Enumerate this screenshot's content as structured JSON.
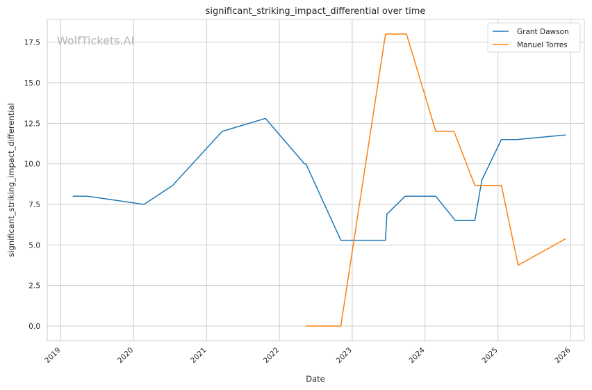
{
  "chart_data": {
    "type": "line",
    "title": "significant_striking_impact_differential over time",
    "xlabel": "Date",
    "ylabel": "significant_striking_impact_differential",
    "watermark": "WolfTickets.AI",
    "x_ticks": [
      "2019",
      "2020",
      "2021",
      "2022",
      "2023",
      "2024",
      "2025",
      "2026"
    ],
    "y_ticks": [
      "0.0",
      "2.5",
      "5.0",
      "7.5",
      "10.0",
      "12.5",
      "15.0",
      "17.5"
    ],
    "xlim": [
      "2018-10-25",
      "2026-03-10"
    ],
    "ylim": [
      -0.9,
      18.9
    ],
    "grid": true,
    "legend_position": "top-right",
    "series": [
      {
        "name": "Grant Dawson",
        "color": "#1f77b4",
        "points": [
          [
            "2019-03-02",
            8.0
          ],
          [
            "2019-05-18",
            8.0
          ],
          [
            "2020-02-22",
            7.5
          ],
          [
            "2020-07-15",
            8.67
          ],
          [
            "2021-03-20",
            12.0
          ],
          [
            "2021-10-23",
            12.8
          ],
          [
            "2022-05-07",
            10.0
          ],
          [
            "2022-05-14",
            10.0
          ],
          [
            "2022-11-05",
            5.29
          ],
          [
            "2023-06-17",
            5.29
          ],
          [
            "2023-06-24",
            6.89
          ],
          [
            "2023-09-23",
            8.0
          ],
          [
            "2024-02-24",
            8.0
          ],
          [
            "2024-06-01",
            6.5
          ],
          [
            "2024-09-07",
            6.5
          ],
          [
            "2024-10-12",
            9.0
          ],
          [
            "2025-01-18",
            11.5
          ],
          [
            "2025-04-05",
            11.5
          ],
          [
            "2025-12-06",
            11.78
          ]
        ]
      },
      {
        "name": "Manuel Torres",
        "color": "#ff7f0e",
        "points": [
          [
            "2022-05-14",
            0.0
          ],
          [
            "2022-11-05",
            0.0
          ],
          [
            "2023-06-17",
            18.0
          ],
          [
            "2023-09-30",
            18.0
          ],
          [
            "2024-02-24",
            12.0
          ],
          [
            "2024-05-25",
            12.0
          ],
          [
            "2024-09-07",
            8.67
          ],
          [
            "2025-01-18",
            8.67
          ],
          [
            "2025-04-12",
            3.75
          ],
          [
            "2025-12-06",
            5.38
          ]
        ]
      }
    ]
  }
}
